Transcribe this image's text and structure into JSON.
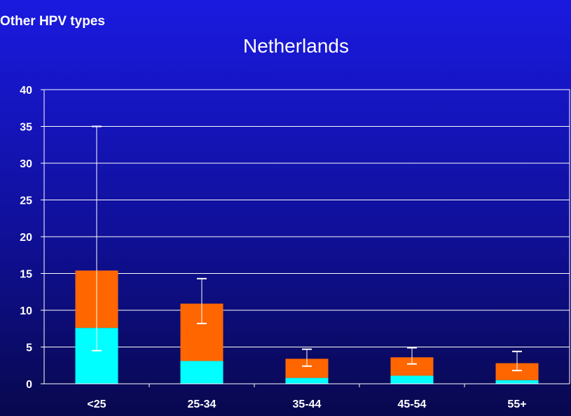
{
  "header": {
    "section_label": "Other HPV types"
  },
  "chart_data": {
    "type": "bar",
    "stacked": true,
    "title": "Netherlands",
    "xlabel": "",
    "ylabel": "",
    "categories": [
      "<25",
      "25-34",
      "35-44",
      "45-54",
      "55+"
    ],
    "ylim": [
      0,
      40
    ],
    "yticks": [
      0,
      5,
      10,
      15,
      20,
      25,
      30,
      35,
      40
    ],
    "grid": true,
    "series": [
      {
        "values": [
          7.6,
          3.1,
          0.8,
          1.1,
          0.5
        ],
        "color": "#00ffff"
      },
      {
        "values": [
          7.8,
          7.8,
          2.6,
          2.5,
          2.3
        ],
        "color": "#ff6600"
      }
    ],
    "error_bars": [
      {
        "low": 4.5,
        "high": 35.0
      },
      {
        "low": 8.2,
        "high": 14.3
      },
      {
        "low": 2.4,
        "high": 4.7
      },
      {
        "low": 2.7,
        "high": 4.9
      },
      {
        "low": 1.8,
        "high": 4.4
      }
    ]
  }
}
